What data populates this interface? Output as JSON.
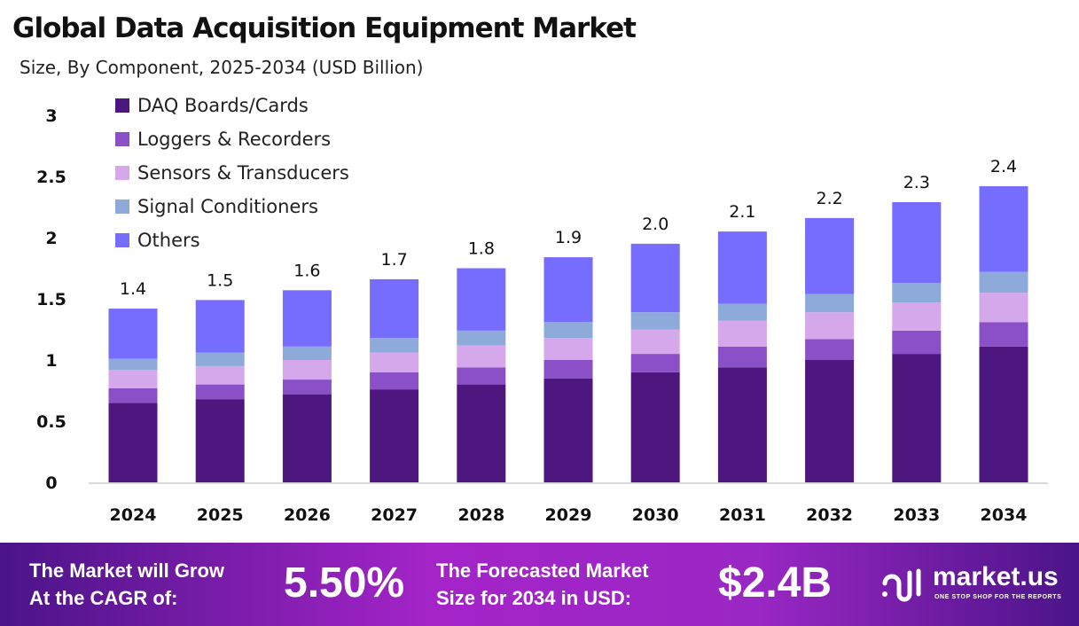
{
  "chart_data": {
    "type": "bar",
    "stacked": true,
    "title": "Global Data Acquisition Equipment Market",
    "subtitle": "Size, By Component, 2025-2034 (USD Billion)",
    "categories": [
      "2024",
      "2025",
      "2026",
      "2027",
      "2028",
      "2029",
      "2030",
      "2031",
      "2032",
      "2033",
      "2034"
    ],
    "ylim": [
      0,
      3
    ],
    "yticks": [
      "0",
      "0.5",
      "1",
      "1.5",
      "2",
      "2.5",
      "3"
    ],
    "grid": false,
    "legend_position": "top-left",
    "totals": [
      "1.4",
      "1.5",
      "1.6",
      "1.7",
      "1.8",
      "1.9",
      "2.0",
      "2.1",
      "2.2",
      "2.3",
      "2.4"
    ],
    "series": [
      {
        "name": "DAQ Boards/Cards",
        "color": "#4e1780",
        "values": [
          0.65,
          0.68,
          0.72,
          0.76,
          0.8,
          0.85,
          0.9,
          0.94,
          1.0,
          1.05,
          1.11
        ]
      },
      {
        "name": "Loggers & Recorders",
        "color": "#8b4fc8",
        "values": [
          0.12,
          0.12,
          0.12,
          0.14,
          0.14,
          0.15,
          0.15,
          0.17,
          0.17,
          0.19,
          0.2
        ]
      },
      {
        "name": " Sensors & Transducers",
        "color": "#d4a8ea",
        "values": [
          0.15,
          0.15,
          0.16,
          0.16,
          0.18,
          0.18,
          0.2,
          0.21,
          0.22,
          0.23,
          0.24
        ]
      },
      {
        "name": "Signal Conditioners",
        "color": "#8eaadb",
        "values": [
          0.09,
          0.11,
          0.11,
          0.12,
          0.12,
          0.13,
          0.14,
          0.14,
          0.15,
          0.16,
          0.17
        ]
      },
      {
        "name": "Others",
        "color": "#766dfe",
        "values": [
          0.41,
          0.43,
          0.46,
          0.48,
          0.51,
          0.53,
          0.56,
          0.59,
          0.62,
          0.66,
          0.7
        ]
      }
    ]
  },
  "banner": {
    "cagr_label_1": "The Market will Grow",
    "cagr_label_2": "At the CAGR of:",
    "cagr_value": "5.50%",
    "forecast_label_1": "The Forecasted Market",
    "forecast_label_2": "Size for 2034 in USD:",
    "forecast_value": "$2.4B",
    "logo_text": "market.us",
    "logo_tagline": "ONE STOP SHOP FOR THE REPORTS"
  }
}
